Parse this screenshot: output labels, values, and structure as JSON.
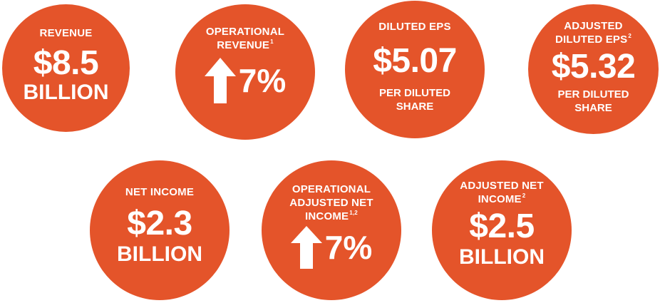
{
  "colors": {
    "accent": "#e4542a",
    "text": "#ffffff",
    "background": "#ffffff"
  },
  "metrics": [
    {
      "label": "REVENUE",
      "sup": "",
      "value": "$8.5",
      "unit": "BILLION"
    },
    {
      "label_line1": "OPERATIONAL",
      "label_line2": "REVENUE",
      "sup": "1",
      "icon": "up-arrow-icon",
      "value": "7%"
    },
    {
      "label": "DILUTED EPS",
      "value": "$5.07",
      "sub_line1": "PER DILUTED",
      "sub_line2": "SHARE"
    },
    {
      "label_line1": "ADJUSTED",
      "label_line2": "DILUTED EPS",
      "sup": "2",
      "value": "$5.32",
      "sub_line1": "PER DILUTED",
      "sub_line2": "SHARE"
    },
    {
      "label": "NET INCOME",
      "value": "$2.3",
      "unit": "BILLION"
    },
    {
      "label_line1": "OPERATIONAL",
      "label_line2": "ADJUSTED NET",
      "label_line3": "INCOME",
      "sup": "1,2",
      "icon": "up-arrow-icon",
      "value": "7%"
    },
    {
      "label_line1": "ADJUSTED NET",
      "label_line2": "INCOME",
      "sup": "2",
      "value": "$2.5",
      "unit": "BILLION"
    }
  ]
}
